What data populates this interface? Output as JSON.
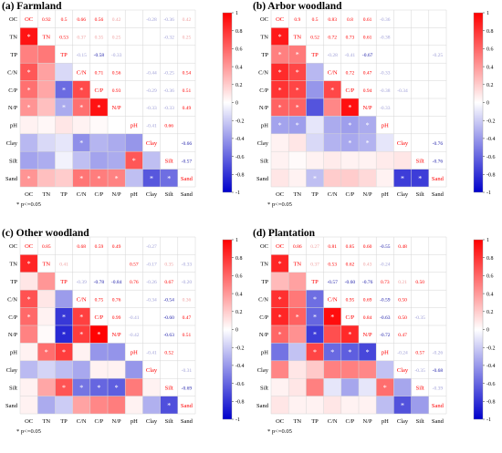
{
  "figure": {
    "variables": [
      "OC",
      "TN",
      "TP",
      "C/N",
      "C/P",
      "N/P",
      "pH",
      "Clay",
      "Silt",
      "Sand"
    ],
    "colorbar_ticks": [
      "1",
      "0.8",
      "0.6",
      "0.4",
      "0.2",
      "0",
      "-0.2",
      "-0.4",
      "-0.6",
      "-0.8",
      "-1"
    ],
    "colors": {
      "positive": "#ff0000",
      "negative": "#0000cc",
      "zero": "#ffffff"
    }
  },
  "chart_data": [
    {
      "type": "heatmap",
      "title": "(a) Farmland",
      "footnote": "* p<=0.05",
      "labels": [
        "OC",
        "TN",
        "TP",
        "C/N",
        "C/P",
        "N/P",
        "pH",
        "Clay",
        "Silt",
        "Sand"
      ],
      "upper_values": [
        [
          null,
          "0.92",
          "0.5",
          "0.66",
          "0.56",
          "0.42",
          "",
          "-0.28",
          "-0.36",
          "0.42"
        ],
        [
          null,
          null,
          "0.53",
          "0.37",
          "0.35",
          "0.25",
          "",
          "",
          "-0.32",
          "0.25"
        ],
        [
          null,
          null,
          null,
          "-0.15",
          "-0.58",
          "-0.33",
          "",
          "",
          "",
          ""
        ],
        [
          null,
          null,
          null,
          null,
          "0.71",
          "0.56",
          "",
          "-0.44",
          "-0.25",
          "0.54"
        ],
        [
          null,
          null,
          null,
          null,
          null,
          "0.93",
          "",
          "-0.29",
          "-0.36",
          "0.51"
        ],
        [
          null,
          null,
          null,
          null,
          null,
          null,
          "",
          "-0.33",
          "-0.33",
          "0.49"
        ],
        [
          null,
          null,
          null,
          null,
          null,
          null,
          null,
          "-0.41",
          "0.66",
          ""
        ],
        [
          null,
          null,
          null,
          null,
          null,
          null,
          null,
          null,
          "",
          "-0.66"
        ],
        [
          null,
          null,
          null,
          null,
          null,
          null,
          null,
          null,
          null,
          "-0.57"
        ],
        [
          null,
          null,
          null,
          null,
          null,
          null,
          null,
          null,
          null,
          null
        ]
      ],
      "lower_values": [
        [],
        [
          0.92
        ],
        [
          0.5,
          0.53
        ],
        [
          0.66,
          0.37,
          -0.15
        ],
        [
          0.56,
          0.35,
          -0.58,
          0.71
        ],
        [
          0.42,
          0.25,
          -0.33,
          0.56,
          0.93
        ],
        [
          0.05,
          0.03,
          0.1,
          0.05,
          0.02,
          0.0
        ],
        [
          -0.28,
          -0.15,
          -0.1,
          -0.44,
          -0.29,
          -0.33,
          -0.41
        ],
        [
          -0.36,
          -0.32,
          -0.05,
          -0.25,
          -0.36,
          -0.33,
          0.66,
          -0.25
        ],
        [
          0.42,
          0.25,
          0.2,
          0.54,
          0.51,
          0.49,
          -0.25,
          -0.66,
          -0.57
        ]
      ],
      "significant": [
        [
          1,
          0
        ],
        [
          3,
          0
        ],
        [
          4,
          0
        ],
        [
          4,
          2
        ],
        [
          4,
          3
        ],
        [
          5,
          0
        ],
        [
          5,
          2
        ],
        [
          5,
          3
        ],
        [
          5,
          4
        ],
        [
          7,
          3
        ],
        [
          8,
          6
        ],
        [
          9,
          0
        ],
        [
          9,
          3
        ],
        [
          9,
          4
        ],
        [
          9,
          5
        ],
        [
          9,
          7
        ],
        [
          9,
          8
        ]
      ]
    },
    {
      "type": "heatmap",
      "title": "(b) Arbor woodland",
      "footnote": "* p<=0.05",
      "labels": [
        "OC",
        "TN",
        "TP",
        "C/N",
        "C/P",
        "N/P",
        "pH",
        "Clay",
        "Silt",
        "Sand"
      ],
      "upper_values": [
        [
          null,
          "0.9",
          "0.5",
          "0.83",
          "0.8",
          "0.61",
          "-0.36",
          "",
          "",
          ""
        ],
        [
          null,
          null,
          "0.52",
          "0.72",
          "0.73",
          "0.61",
          "-0.38",
          "",
          "",
          ""
        ],
        [
          null,
          null,
          null,
          "-0.28",
          "-0.41",
          "-0.67",
          "",
          "",
          "",
          "-0.25"
        ],
        [
          null,
          null,
          null,
          null,
          "0.72",
          "0.47",
          "-0.33",
          "",
          "",
          ""
        ],
        [
          null,
          null,
          null,
          null,
          null,
          "0.94",
          "-0.38",
          "-0.34",
          "",
          ""
        ],
        [
          null,
          null,
          null,
          null,
          null,
          null,
          "-0.33",
          "",
          "",
          ""
        ],
        [
          null,
          null,
          null,
          null,
          null,
          null,
          null,
          "",
          "",
          ""
        ],
        [
          null,
          null,
          null,
          null,
          null,
          null,
          null,
          null,
          "",
          "-0.76"
        ],
        [
          null,
          null,
          null,
          null,
          null,
          null,
          null,
          null,
          null,
          "-0.76"
        ],
        [
          null,
          null,
          null,
          null,
          null,
          null,
          null,
          null,
          null,
          null
        ]
      ],
      "lower_values": [
        [],
        [
          0.9
        ],
        [
          0.5,
          0.52
        ],
        [
          0.83,
          0.72,
          -0.28
        ],
        [
          0.8,
          0.73,
          -0.41,
          0.72
        ],
        [
          0.61,
          0.61,
          -0.67,
          0.47,
          0.94
        ],
        [
          -0.36,
          -0.38,
          -0.1,
          -0.33,
          -0.38,
          -0.33
        ],
        [
          0.05,
          0.1,
          -0.15,
          -0.3,
          -0.34,
          -0.3,
          -0.1
        ],
        [
          0.05,
          0.02,
          0.05,
          0.08,
          0.05,
          0.05,
          0.08,
          0.1
        ],
        [
          0.1,
          0.05,
          -0.25,
          0.2,
          0.2,
          0.15,
          0.05,
          -0.76,
          -0.76
        ]
      ],
      "significant": [
        [
          1,
          0
        ],
        [
          2,
          0
        ],
        [
          2,
          1
        ],
        [
          3,
          0
        ],
        [
          3,
          1
        ],
        [
          4,
          0
        ],
        [
          4,
          1
        ],
        [
          4,
          3
        ],
        [
          5,
          0
        ],
        [
          5,
          1
        ],
        [
          5,
          4
        ],
        [
          6,
          0
        ],
        [
          6,
          1
        ],
        [
          6,
          4
        ],
        [
          6,
          5
        ],
        [
          7,
          4
        ],
        [
          7,
          5
        ],
        [
          9,
          2
        ],
        [
          9,
          7
        ],
        [
          9,
          8
        ]
      ]
    },
    {
      "type": "heatmap",
      "title": "(c) Other woodland",
      "footnote": "* p<=0.05",
      "labels": [
        "OC",
        "TN",
        "TP",
        "C/N",
        "C/P",
        "N/P",
        "pH",
        "Clay",
        "Silt",
        "Sand"
      ],
      "upper_values": [
        [
          null,
          "0.85",
          "",
          "0.68",
          "0.59",
          "0.49",
          "",
          "-0.27",
          "",
          ""
        ],
        [
          null,
          null,
          "0.41",
          "",
          "",
          "",
          "0.57",
          "-0.17",
          "0.35",
          "-0.33"
        ],
        [
          null,
          null,
          null,
          "-0.39",
          "-0.78",
          "-0.84",
          "0.76",
          "-0.26",
          "0.67",
          "-0.20"
        ],
        [
          null,
          null,
          null,
          null,
          "0.75",
          "0.76",
          "",
          "-0.34",
          "-0.54",
          "0.36"
        ],
        [
          null,
          null,
          null,
          null,
          null,
          "0.99",
          "-0.41",
          "",
          "-0.60",
          "0.47"
        ],
        [
          null,
          null,
          null,
          null,
          null,
          null,
          "-0.42",
          "",
          "-0.63",
          "0.51"
        ],
        [
          null,
          null,
          null,
          null,
          null,
          null,
          null,
          "-0.41",
          "0.52",
          ""
        ],
        [
          null,
          null,
          null,
          null,
          null,
          null,
          null,
          null,
          "",
          "-0.31"
        ],
        [
          null,
          null,
          null,
          null,
          null,
          null,
          null,
          null,
          null,
          "-0.69"
        ],
        [
          null,
          null,
          null,
          null,
          null,
          null,
          null,
          null,
          null,
          null
        ]
      ],
      "lower_values": [
        [],
        [
          0.85
        ],
        [
          0.1,
          0.41
        ],
        [
          0.68,
          0.1,
          -0.39
        ],
        [
          0.59,
          0.05,
          -0.78,
          0.75
        ],
        [
          0.49,
          0.02,
          -0.84,
          0.76,
          0.99
        ],
        [
          0.05,
          0.57,
          0.76,
          0.05,
          -0.41,
          -0.42
        ],
        [
          -0.27,
          -0.17,
          -0.26,
          -0.34,
          0.05,
          0.05,
          -0.41
        ],
        [
          0.05,
          0.35,
          0.67,
          -0.54,
          -0.6,
          -0.63,
          0.52,
          0.05
        ],
        [
          0.05,
          -0.33,
          -0.2,
          0.36,
          0.47,
          0.51,
          0.05,
          -0.31,
          -0.69
        ]
      ],
      "significant": [
        [
          1,
          0
        ],
        [
          3,
          0
        ],
        [
          4,
          0
        ],
        [
          4,
          2
        ],
        [
          4,
          3
        ],
        [
          5,
          2
        ],
        [
          5,
          3
        ],
        [
          5,
          4
        ],
        [
          6,
          1
        ],
        [
          6,
          2
        ],
        [
          8,
          2
        ],
        [
          8,
          3
        ],
        [
          8,
          4
        ],
        [
          8,
          5
        ],
        [
          9,
          8
        ]
      ]
    },
    {
      "type": "heatmap",
      "title": "(d) Plantation",
      "footnote": "* p<=0.05",
      "labels": [
        "OC",
        "TN",
        "TP",
        "C/N",
        "C/P",
        "N/P",
        "pH",
        "Clay",
        "Silt",
        "Sand"
      ],
      "upper_values": [
        [
          null,
          "0.86",
          "0.27",
          "0.81",
          "0.85",
          "0.60",
          "-0.55",
          "0.48",
          "",
          ""
        ],
        [
          null,
          null,
          "0.37",
          "0.53",
          "0.62",
          "0.43",
          "-0.24",
          "",
          "",
          ""
        ],
        [
          null,
          null,
          null,
          "-0.57",
          "-0.60",
          "-0.76",
          "0.73",
          "0.21",
          "0.50",
          ""
        ],
        [
          null,
          null,
          null,
          null,
          "0.95",
          "0.69",
          "-0.59",
          "0.50",
          "",
          ""
        ],
        [
          null,
          null,
          null,
          null,
          null,
          "0.84",
          "-0.63",
          "0.50",
          "-0.35",
          ""
        ],
        [
          null,
          null,
          null,
          null,
          null,
          null,
          "-0.72",
          "0.47",
          "",
          ""
        ],
        [
          null,
          null,
          null,
          null,
          null,
          null,
          null,
          "-0.24",
          "0.57",
          "-0.26"
        ],
        [
          null,
          null,
          null,
          null,
          null,
          null,
          null,
          null,
          "-0.35",
          "-0.68"
        ],
        [
          null,
          null,
          null,
          null,
          null,
          null,
          null,
          null,
          null,
          "-0.39"
        ],
        [
          null,
          null,
          null,
          null,
          null,
          null,
          null,
          null,
          null,
          null
        ]
      ],
      "lower_values": [
        [],
        [
          0.86
        ],
        [
          0.27,
          0.37
        ],
        [
          0.81,
          0.53,
          -0.57
        ],
        [
          0.85,
          0.62,
          -0.6,
          0.95
        ],
        [
          0.6,
          0.43,
          -0.76,
          0.69,
          0.84
        ],
        [
          -0.55,
          -0.24,
          0.73,
          -0.59,
          -0.63,
          -0.72
        ],
        [
          0.48,
          0.1,
          0.21,
          0.5,
          0.5,
          0.47,
          -0.24
        ],
        [
          0.05,
          0.1,
          0.5,
          -0.1,
          -0.35,
          -0.1,
          0.57,
          -0.35
        ],
        [
          0.1,
          0.05,
          0.05,
          0.1,
          0.05,
          0.05,
          -0.26,
          -0.68,
          -0.39
        ]
      ],
      "significant": [
        [
          1,
          0
        ],
        [
          3,
          0
        ],
        [
          3,
          2
        ],
        [
          4,
          0
        ],
        [
          4,
          1
        ],
        [
          4,
          2
        ],
        [
          4,
          3
        ],
        [
          5,
          0
        ],
        [
          5,
          2
        ],
        [
          5,
          4
        ],
        [
          6,
          2
        ],
        [
          6,
          3
        ],
        [
          6,
          4
        ],
        [
          6,
          5
        ],
        [
          8,
          6
        ],
        [
          9,
          7
        ]
      ]
    }
  ]
}
